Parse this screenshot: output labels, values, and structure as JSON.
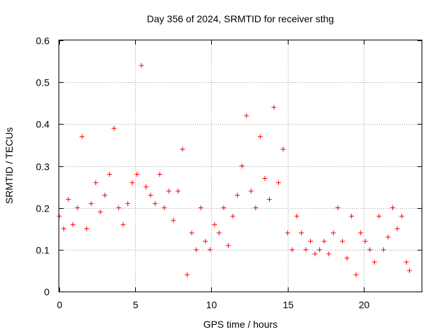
{
  "chart_data": {
    "type": "scatter",
    "title": "Day 356 of 2024, SRMTID for receiver sthg",
    "xlabel": "GPS time / hours",
    "ylabel": "SRMTID / TECUs",
    "xlim": [
      0,
      23.8
    ],
    "ylim": [
      0,
      0.6
    ],
    "xticks": [
      0,
      5,
      10,
      15,
      20
    ],
    "yticks": [
      0,
      0.1,
      0.2,
      0.3,
      0.4,
      0.5,
      0.6
    ],
    "xtick_labels": [
      "0",
      "5",
      "10",
      "15",
      "20"
    ],
    "ytick_labels": [
      "0",
      "0.1",
      "0.2",
      "0.3",
      "0.4",
      "0.5",
      "0.6"
    ],
    "grid": true,
    "marker": "+",
    "color": "#ff0000",
    "series": [
      {
        "name": "SRMTID",
        "x": [
          0.0,
          0.3,
          0.6,
          0.9,
          1.2,
          1.5,
          1.8,
          2.1,
          2.4,
          2.7,
          3.0,
          3.3,
          3.6,
          3.9,
          4.2,
          4.5,
          4.8,
          5.1,
          5.4,
          5.7,
          6.0,
          6.3,
          6.6,
          6.9,
          7.2,
          7.5,
          7.8,
          8.1,
          8.4,
          8.7,
          9.0,
          9.3,
          9.6,
          9.9,
          10.2,
          10.5,
          10.8,
          11.1,
          11.4,
          11.7,
          12.0,
          12.3,
          12.6,
          12.9,
          13.2,
          13.5,
          13.8,
          14.1,
          14.4,
          14.7,
          15.0,
          15.3,
          15.6,
          15.9,
          16.2,
          16.5,
          16.8,
          17.1,
          17.4,
          17.7,
          18.0,
          18.3,
          18.6,
          18.9,
          19.2,
          19.5,
          19.8,
          20.1,
          20.4,
          20.7,
          21.0,
          21.3,
          21.6,
          21.9,
          22.2,
          22.5,
          22.8,
          23.0
        ],
        "y": [
          0.18,
          0.15,
          0.22,
          0.16,
          0.2,
          0.37,
          0.15,
          0.21,
          0.26,
          0.19,
          0.23,
          0.28,
          0.39,
          0.2,
          0.16,
          0.21,
          0.26,
          0.28,
          0.54,
          0.25,
          0.23,
          0.21,
          0.28,
          0.2,
          0.24,
          0.17,
          0.24,
          0.34,
          0.04,
          0.14,
          0.1,
          0.2,
          0.12,
          0.1,
          0.16,
          0.14,
          0.2,
          0.11,
          0.18,
          0.23,
          0.3,
          0.42,
          0.24,
          0.2,
          0.37,
          0.27,
          0.22,
          0.44,
          0.26,
          0.34,
          0.14,
          0.1,
          0.18,
          0.14,
          0.1,
          0.12,
          0.09,
          0.1,
          0.12,
          0.09,
          0.14,
          0.2,
          0.12,
          0.08,
          0.18,
          0.04,
          0.14,
          0.12,
          0.1,
          0.07,
          0.18,
          0.1,
          0.13,
          0.2,
          0.15,
          0.18,
          0.07,
          0.05
        ]
      }
    ]
  }
}
